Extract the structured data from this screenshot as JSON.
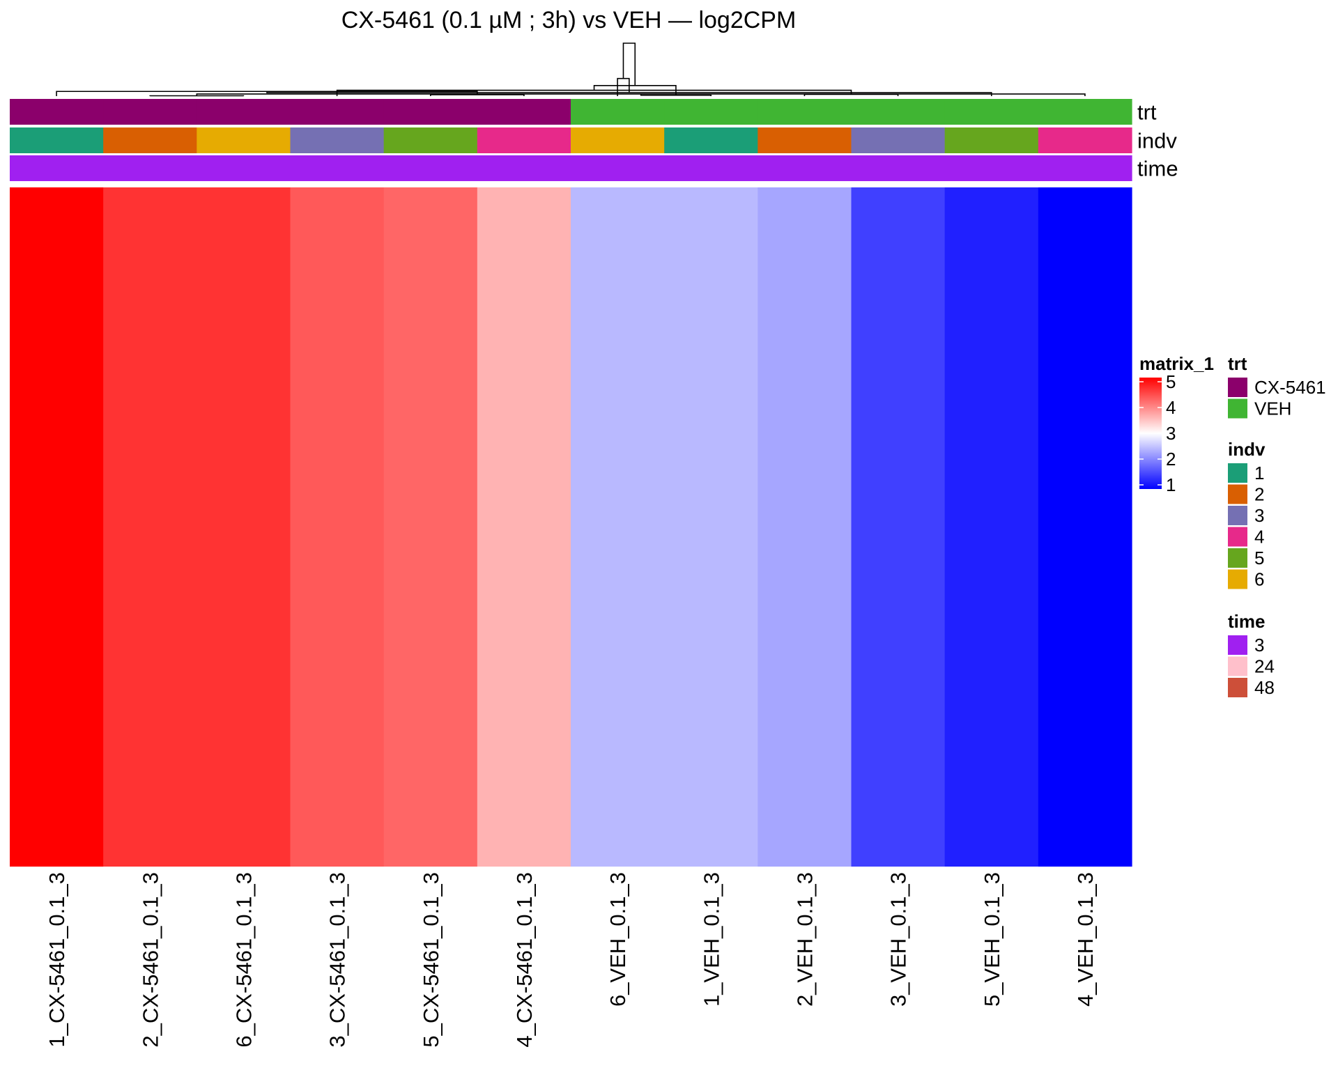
{
  "chart_data": {
    "type": "heatmap",
    "title": "CX-5461 (0.1 µM ; 3h) vs VEH — log2CPM",
    "columns": [
      "1_CX-5461_0.1_3",
      "2_CX-5461_0.1_3",
      "6_CX-5461_0.1_3",
      "3_CX-5461_0.1_3",
      "5_CX-5461_0.1_3",
      "4_CX-5461_0.1_3",
      "6_VEH_0.1_3",
      "1_VEH_0.1_3",
      "2_VEH_0.1_3",
      "3_VEH_0.1_3",
      "5_VEH_0.1_3",
      "4_VEH_0.1_3"
    ],
    "values": [
      [
        5.0,
        4.6,
        4.6,
        4.3,
        4.2,
        3.6,
        2.45,
        2.45,
        2.3,
        1.5,
        1.25,
        1.0
      ]
    ],
    "color_scale": {
      "name": "matrix_1",
      "min": 1,
      "mid": 3,
      "max": 5,
      "low_color": "#0000ff",
      "mid_color": "#ffffff",
      "high_color": "#ff0000",
      "ticks": [
        "5",
        "4",
        "3",
        "2",
        "1"
      ]
    },
    "annotations": [
      {
        "name": "trt",
        "values": [
          "CX-5461",
          "CX-5461",
          "CX-5461",
          "CX-5461",
          "CX-5461",
          "CX-5461",
          "VEH",
          "VEH",
          "VEH",
          "VEH",
          "VEH",
          "VEH"
        ],
        "legend": [
          {
            "label": "CX-5461",
            "color": "#8b006b"
          },
          {
            "label": "VEH",
            "color": "#40b533"
          }
        ]
      },
      {
        "name": "indv",
        "values": [
          "1",
          "2",
          "6",
          "3",
          "5",
          "4",
          "6",
          "1",
          "2",
          "3",
          "5",
          "4"
        ],
        "legend": [
          {
            "label": "1",
            "color": "#1b9e77"
          },
          {
            "label": "2",
            "color": "#d95f02"
          },
          {
            "label": "3",
            "color": "#7570b3"
          },
          {
            "label": "4",
            "color": "#e7298a"
          },
          {
            "label": "5",
            "color": "#66a61e"
          },
          {
            "label": "6",
            "color": "#e6ab02"
          }
        ]
      },
      {
        "name": "time",
        "values": [
          "3",
          "3",
          "3",
          "3",
          "3",
          "3",
          "3",
          "3",
          "3",
          "3",
          "3",
          "3"
        ],
        "legend": [
          {
            "label": "3",
            "color": "#a020f0"
          },
          {
            "label": "24",
            "color": "#ffc0cb"
          },
          {
            "label": "48",
            "color": "#cd4f39"
          }
        ]
      }
    ],
    "dendrogram": {
      "merges": [
        [
          1,
          2
        ],
        [
          4,
          5
        ],
        [
          8,
          9
        ],
        [
          11,
          12
        ],
        [
          0,
          13
        ],
        [
          3,
          14
        ],
        [
          7,
          15
        ],
        [
          10,
          16
        ],
        [
          17,
          18
        ],
        [
          6,
          19
        ],
        [
          20,
          21
        ]
      ],
      "heights": [
        0.003,
        0.012,
        0.015,
        0.018,
        0.04,
        0.05,
        0.008,
        0.03,
        0.09,
        0.15,
        0.45
      ]
    },
    "legend_placement": "right"
  }
}
